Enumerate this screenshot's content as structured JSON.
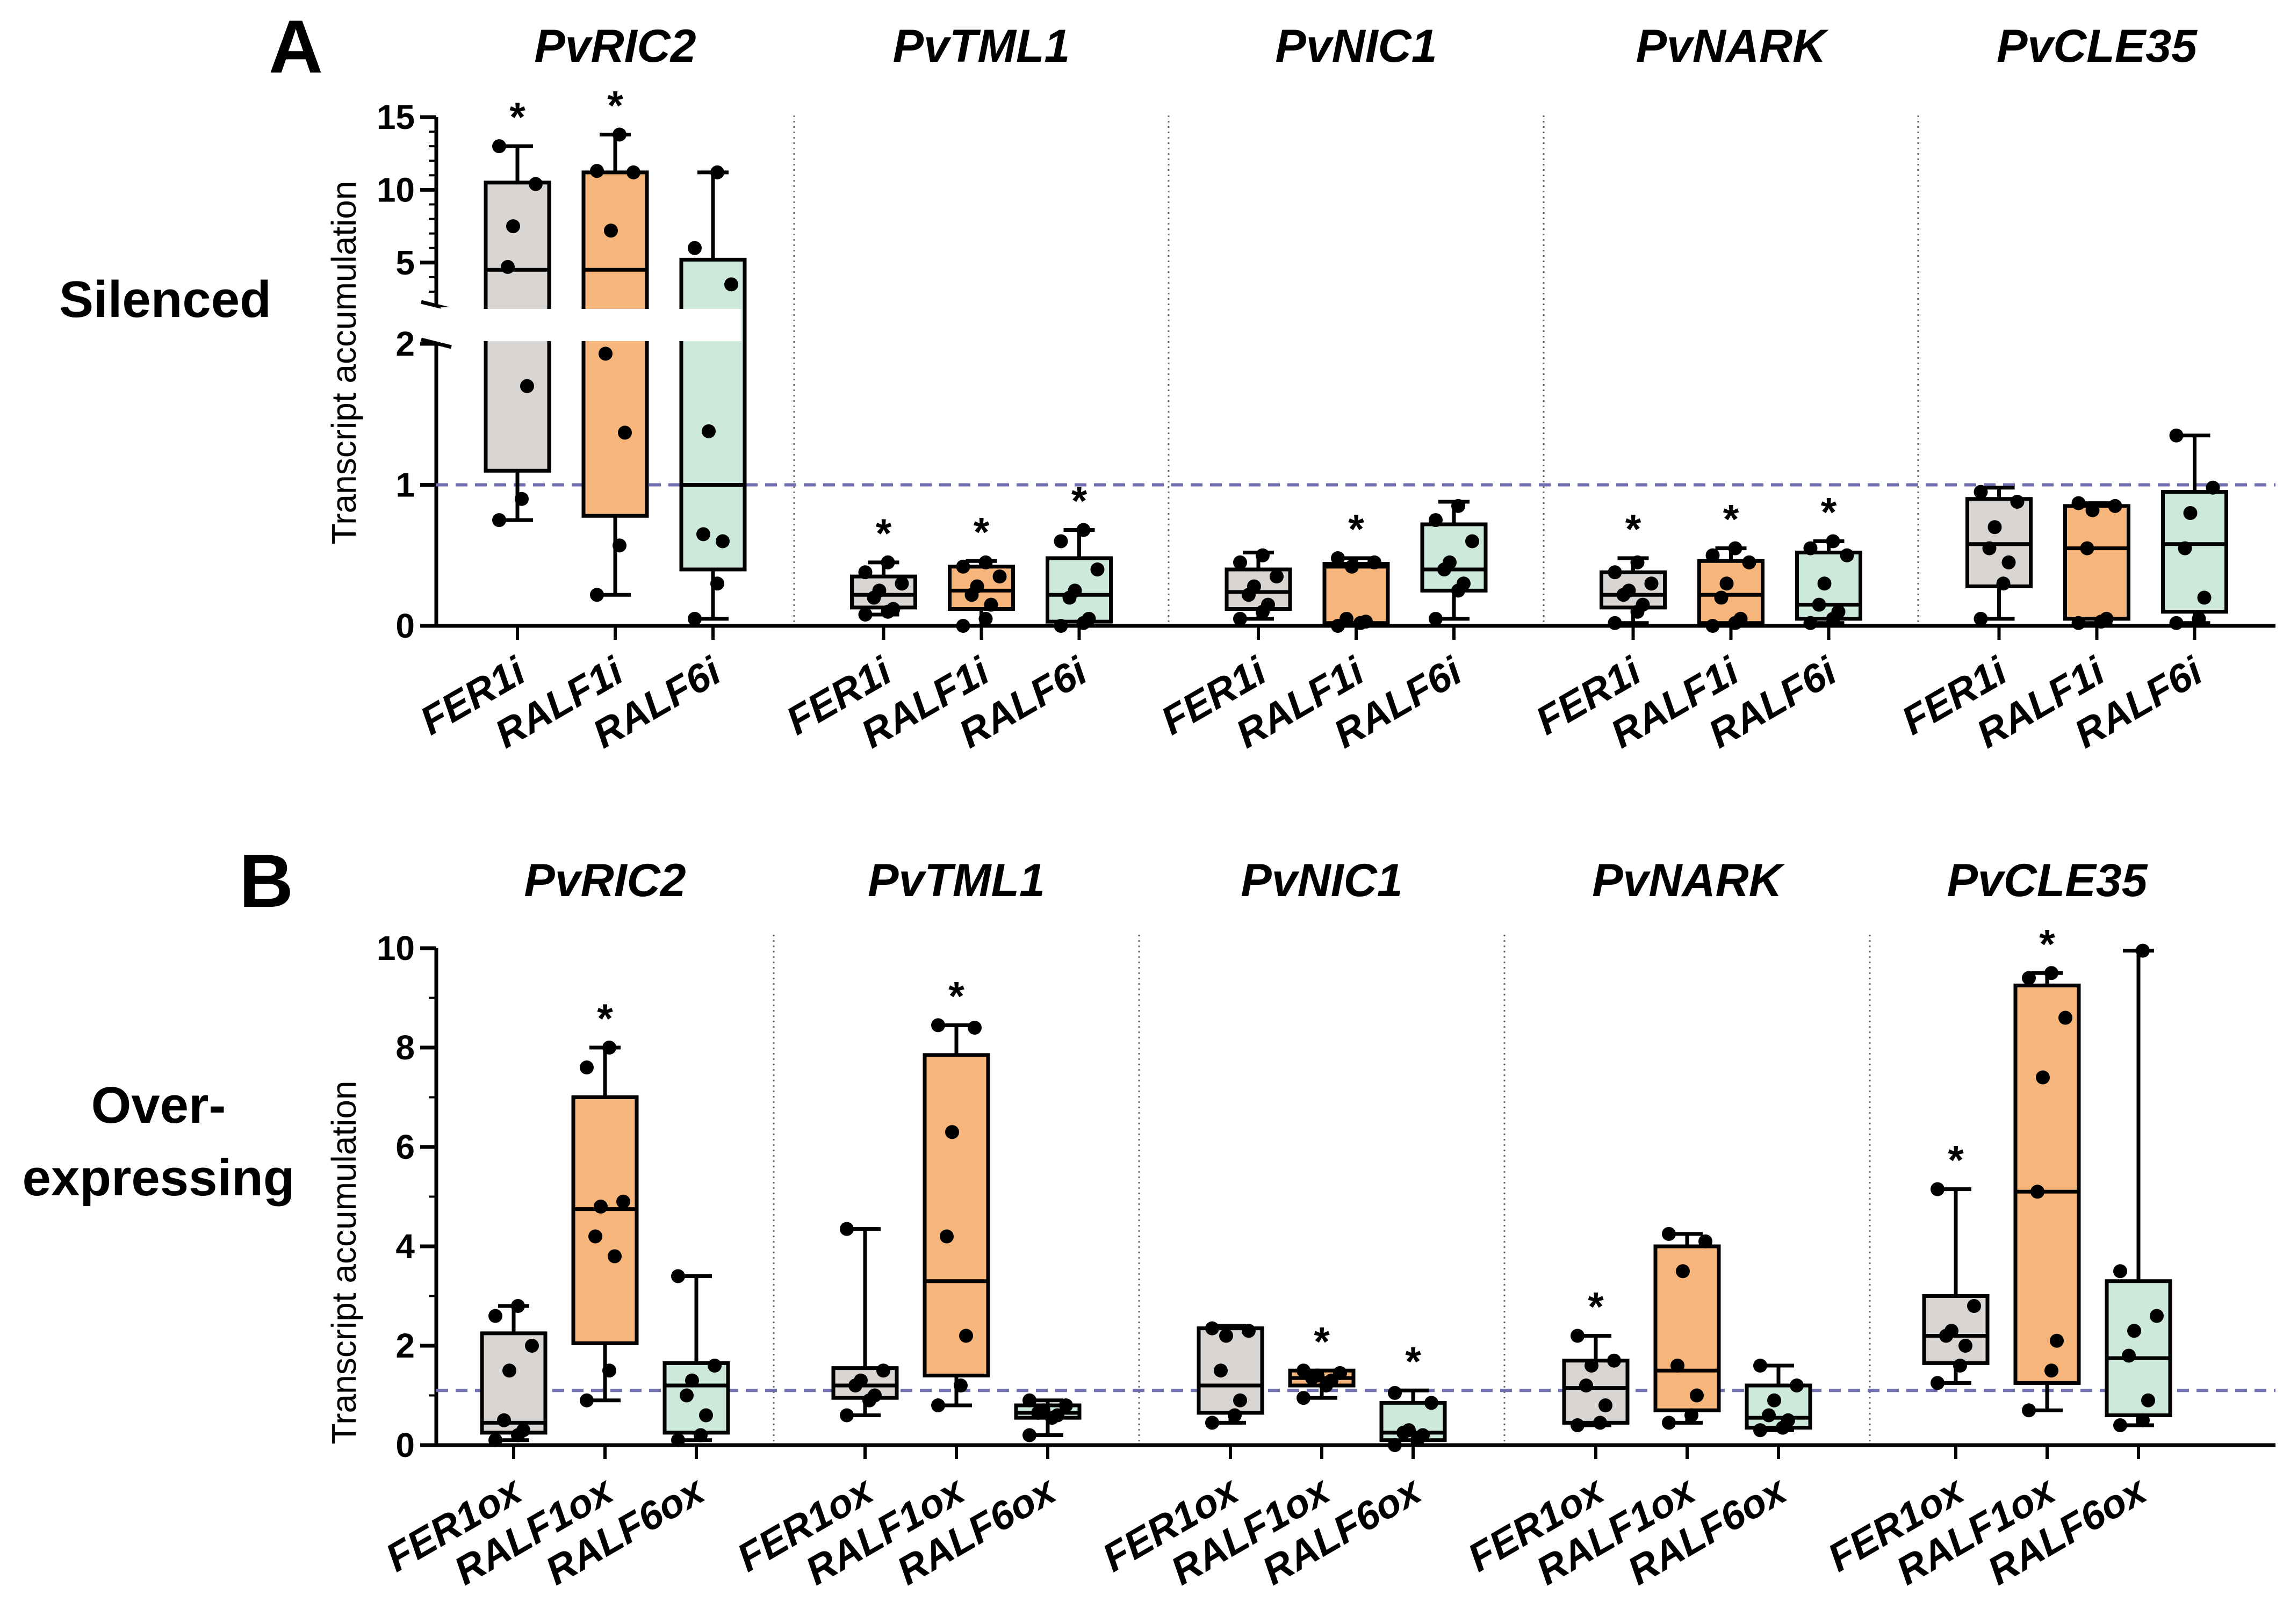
{
  "colors": {
    "grey": "#d9d5d2",
    "orange": "#f5b57b",
    "green": "#cde9da",
    "reference_line": "#7070b0",
    "divider": "#666666"
  },
  "chart_data": [
    {
      "type": "box",
      "panel": "A",
      "row_label": "Silenced",
      "ylabel": "Transcript accumulation",
      "yaxis": {
        "broken": true,
        "lower_ticks": [
          "0",
          "1",
          "2"
        ],
        "upper_ticks": [
          "5",
          "10",
          "15"
        ],
        "lower_range": [
          0,
          2
        ],
        "upper_range": [
          2,
          15
        ]
      },
      "reference_line": 1,
      "categories": [
        "FER1i",
        "RALF1i",
        "RALF6i"
      ],
      "series_colors": [
        "grey",
        "orange",
        "green"
      ],
      "groups": [
        {
          "gene": "PvRIC2",
          "boxes": [
            {
              "category": "FER1i",
              "min": 0.75,
              "q1": 1.1,
              "median": 4.5,
              "q3": 10.5,
              "max": 13.0,
              "points": [
                0.75,
                0.9,
                1.7,
                4.7,
                7.5,
                10.4,
                13.0
              ],
              "star": true
            },
            {
              "category": "RALF1i",
              "min": 0.22,
              "q1": 0.78,
              "median": 4.5,
              "q3": 11.2,
              "max": 13.8,
              "points": [
                0.22,
                0.57,
                1.37,
                1.93,
                7.2,
                11.2,
                11.3,
                13.8
              ],
              "star": true
            },
            {
              "category": "RALF6i",
              "min": 0.05,
              "q1": 0.4,
              "median": 1.0,
              "q3": 5.2,
              "max": 11.2,
              "points": [
                0.05,
                0.3,
                0.6,
                0.65,
                1.38,
                3.5,
                6.0,
                11.2
              ],
              "star": false
            }
          ]
        },
        {
          "gene": "PvTML1",
          "boxes": [
            {
              "category": "FER1i",
              "min": 0.08,
              "q1": 0.13,
              "median": 0.22,
              "q3": 0.35,
              "max": 0.45,
              "points": [
                0.08,
                0.1,
                0.12,
                0.2,
                0.25,
                0.3,
                0.38,
                0.45
              ],
              "star": true
            },
            {
              "category": "RALF1i",
              "min": 0.0,
              "q1": 0.12,
              "median": 0.25,
              "q3": 0.42,
              "max": 0.46,
              "points": [
                0.0,
                0.05,
                0.15,
                0.22,
                0.28,
                0.35,
                0.42,
                0.45
              ],
              "star": true
            },
            {
              "category": "RALF6i",
              "min": 0.0,
              "q1": 0.03,
              "median": 0.22,
              "q3": 0.48,
              "max": 0.68,
              "points": [
                0.0,
                0.02,
                0.05,
                0.2,
                0.25,
                0.4,
                0.6,
                0.68
              ],
              "star": true
            }
          ]
        },
        {
          "gene": "PvNIC1",
          "boxes": [
            {
              "category": "FER1i",
              "min": 0.05,
              "q1": 0.12,
              "median": 0.24,
              "q3": 0.4,
              "max": 0.52,
              "points": [
                0.05,
                0.1,
                0.15,
                0.22,
                0.28,
                0.35,
                0.45,
                0.5
              ],
              "star": false
            },
            {
              "category": "RALF1i",
              "min": 0.0,
              "q1": 0.02,
              "median": 0.42,
              "q3": 0.44,
              "max": 0.48,
              "points": [
                0.0,
                0.02,
                0.03,
                0.05,
                0.42,
                0.45,
                0.48
              ],
              "star": true
            },
            {
              "category": "RALF6i",
              "min": 0.05,
              "q1": 0.25,
              "median": 0.4,
              "q3": 0.72,
              "max": 0.88,
              "points": [
                0.05,
                0.25,
                0.3,
                0.4,
                0.45,
                0.6,
                0.75,
                0.85
              ],
              "star": false
            }
          ]
        },
        {
          "gene": "PvNARK",
          "boxes": [
            {
              "category": "FER1i",
              "min": 0.02,
              "q1": 0.13,
              "median": 0.22,
              "q3": 0.38,
              "max": 0.48,
              "points": [
                0.02,
                0.1,
                0.15,
                0.22,
                0.25,
                0.3,
                0.38,
                0.45
              ],
              "star": true
            },
            {
              "category": "RALF1i",
              "min": 0.0,
              "q1": 0.02,
              "median": 0.22,
              "q3": 0.46,
              "max": 0.55,
              "points": [
                0.0,
                0.02,
                0.05,
                0.2,
                0.3,
                0.45,
                0.5,
                0.55
              ],
              "star": true
            },
            {
              "category": "RALF6i",
              "min": 0.02,
              "q1": 0.05,
              "median": 0.15,
              "q3": 0.52,
              "max": 0.6,
              "points": [
                0.02,
                0.05,
                0.1,
                0.15,
                0.3,
                0.5,
                0.55,
                0.6
              ],
              "star": true
            }
          ]
        },
        {
          "gene": "PvCLE35",
          "boxes": [
            {
              "category": "FER1i",
              "min": 0.05,
              "q1": 0.28,
              "median": 0.58,
              "q3": 0.9,
              "max": 0.98,
              "points": [
                0.05,
                0.3,
                0.45,
                0.55,
                0.7,
                0.88,
                0.95
              ],
              "star": false
            },
            {
              "category": "RALF1i",
              "min": 0.02,
              "q1": 0.05,
              "median": 0.55,
              "q3": 0.85,
              "max": 0.87,
              "points": [
                0.02,
                0.03,
                0.05,
                0.55,
                0.82,
                0.85,
                0.87
              ],
              "star": false
            },
            {
              "category": "RALF6i",
              "min": 0.02,
              "q1": 0.1,
              "median": 0.58,
              "q3": 0.95,
              "max": 1.35,
              "points": [
                0.02,
                0.05,
                0.2,
                0.55,
                0.8,
                0.98,
                1.35
              ],
              "star": false
            }
          ]
        }
      ]
    },
    {
      "type": "box",
      "panel": "B",
      "row_label_lines": [
        "Over-",
        "expressing"
      ],
      "ylabel": "Transcript accumulation",
      "yaxis": {
        "ticks": [
          "0",
          "2",
          "4",
          "6",
          "8",
          "10"
        ],
        "range": [
          0,
          10
        ]
      },
      "reference_line": 1.1,
      "categories": [
        "FER1ox",
        "RALF1ox",
        "RALF6ox"
      ],
      "series_colors": [
        "grey",
        "orange",
        "green"
      ],
      "groups": [
        {
          "gene": "PvRIC2",
          "boxes": [
            {
              "category": "FER1ox",
              "min": 0.1,
              "q1": 0.25,
              "median": 0.45,
              "q3": 2.25,
              "max": 2.8,
              "points": [
                0.1,
                0.2,
                0.3,
                0.5,
                1.5,
                2.0,
                2.6,
                2.8
              ],
              "star": false
            },
            {
              "category": "RALF1ox",
              "min": 0.9,
              "q1": 2.05,
              "median": 4.75,
              "q3": 7.0,
              "max": 8.0,
              "points": [
                0.9,
                1.5,
                3.8,
                4.2,
                4.8,
                4.9,
                7.6,
                8.0
              ],
              "star": true
            },
            {
              "category": "RALF6ox",
              "min": 0.1,
              "q1": 0.25,
              "median": 1.2,
              "q3": 1.65,
              "max": 3.4,
              "points": [
                0.1,
                0.2,
                0.6,
                1.0,
                1.3,
                1.6,
                3.4
              ],
              "star": false
            }
          ]
        },
        {
          "gene": "PvTML1",
          "boxes": [
            {
              "category": "FER1ox",
              "min": 0.6,
              "q1": 0.95,
              "median": 1.2,
              "q3": 1.55,
              "max": 4.35,
              "points": [
                0.6,
                0.9,
                1.0,
                1.2,
                1.3,
                1.5,
                4.35
              ],
              "star": false
            },
            {
              "category": "RALF1ox",
              "min": 0.8,
              "q1": 1.4,
              "median": 3.3,
              "q3": 7.85,
              "max": 8.45,
              "points": [
                0.8,
                1.2,
                2.2,
                4.2,
                6.3,
                8.4,
                8.45
              ],
              "star": true
            },
            {
              "category": "RALF6ox",
              "min": 0.2,
              "q1": 0.55,
              "median": 0.65,
              "q3": 0.8,
              "max": 0.9,
              "points": [
                0.2,
                0.55,
                0.6,
                0.65,
                0.7,
                0.8,
                0.9
              ],
              "star": false
            }
          ]
        },
        {
          "gene": "PvNIC1",
          "boxes": [
            {
              "category": "FER1ox",
              "min": 0.45,
              "q1": 0.65,
              "median": 1.2,
              "q3": 2.35,
              "max": 2.4,
              "points": [
                0.45,
                0.6,
                0.9,
                1.5,
                2.2,
                2.3,
                2.35
              ],
              "star": false
            },
            {
              "category": "RALF1ox",
              "min": 0.95,
              "q1": 1.2,
              "median": 1.35,
              "q3": 1.5,
              "max": 1.5,
              "points": [
                0.95,
                1.2,
                1.3,
                1.35,
                1.4,
                1.45,
                1.5
              ],
              "star": true
            },
            {
              "category": "RALF6ox",
              "min": 0.0,
              "q1": 0.1,
              "median": 0.25,
              "q3": 0.85,
              "max": 1.1,
              "points": [
                0.0,
                0.1,
                0.2,
                0.25,
                0.3,
                0.85,
                1.05
              ],
              "star": true
            }
          ]
        },
        {
          "gene": "PvNARK",
          "boxes": [
            {
              "category": "FER1ox",
              "min": 0.4,
              "q1": 0.45,
              "median": 1.15,
              "q3": 1.7,
              "max": 2.2,
              "points": [
                0.4,
                0.45,
                0.8,
                1.2,
                1.6,
                1.7,
                2.2
              ],
              "star": true
            },
            {
              "category": "RALF1ox",
              "min": 0.45,
              "q1": 0.7,
              "median": 1.5,
              "q3": 4.0,
              "max": 4.25,
              "points": [
                0.45,
                0.6,
                1.0,
                1.6,
                3.5,
                4.1,
                4.25
              ],
              "star": false
            },
            {
              "category": "RALF6ox",
              "min": 0.3,
              "q1": 0.35,
              "median": 0.55,
              "q3": 1.2,
              "max": 1.6,
              "points": [
                0.3,
                0.35,
                0.5,
                0.6,
                0.9,
                1.2,
                1.6
              ],
              "star": false
            }
          ]
        },
        {
          "gene": "PvCLE35",
          "boxes": [
            {
              "category": "FER1ox",
              "min": 1.25,
              "q1": 1.65,
              "median": 2.2,
              "q3": 3.0,
              "max": 5.15,
              "points": [
                1.25,
                1.6,
                2.0,
                2.2,
                2.3,
                2.8,
                5.15
              ],
              "star": true
            },
            {
              "category": "RALF1ox",
              "min": 0.7,
              "q1": 1.25,
              "median": 5.1,
              "q3": 9.25,
              "max": 9.5,
              "points": [
                0.7,
                1.5,
                2.1,
                5.1,
                7.4,
                8.6,
                9.4,
                9.5
              ],
              "star": true
            },
            {
              "category": "RALF6ox",
              "min": 0.4,
              "q1": 0.6,
              "median": 1.75,
              "q3": 3.3,
              "max": 9.95,
              "points": [
                0.4,
                0.5,
                0.9,
                1.8,
                2.3,
                2.6,
                3.5,
                9.95
              ],
              "star": false
            }
          ]
        }
      ]
    }
  ]
}
